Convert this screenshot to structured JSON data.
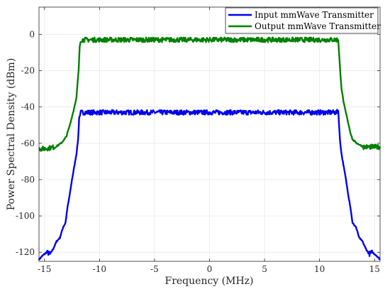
{
  "chart_data": {
    "type": "line",
    "title": "",
    "xlabel": "Frequency (MHz)",
    "ylabel": "Power Spectral Density (dBm)",
    "xlim": [
      -15.5,
      15.5
    ],
    "ylim": [
      -125,
      15
    ],
    "xticks": [
      -15,
      -10,
      -5,
      0,
      5,
      10,
      15
    ],
    "xtick_labels": [
      "-15",
      "-10",
      "-5",
      "0",
      "5",
      "10",
      "15"
    ],
    "yticks": [
      -120,
      -100,
      -80,
      -60,
      -40,
      -20,
      0
    ],
    "ytick_labels": [
      "-120",
      "-100",
      "-80",
      "-60",
      "-40",
      "-20",
      "0"
    ],
    "grid": true,
    "legend_position": "top-right",
    "series": [
      {
        "name": "Input mmWave Transmitter",
        "color": "#0000ee",
        "points": [
          [
            -15.5,
            -124
          ],
          [
            -15.2,
            -122
          ],
          [
            -14.8,
            -120
          ],
          [
            -14.5,
            -121
          ],
          [
            -14.2,
            -118
          ],
          [
            -13.9,
            -114
          ],
          [
            -13.6,
            -112
          ],
          [
            -13.3,
            -106
          ],
          [
            -13.1,
            -104
          ],
          [
            -12.9,
            -95
          ],
          [
            -12.7,
            -88
          ],
          [
            -12.5,
            -80
          ],
          [
            -12.3,
            -73
          ],
          [
            -12.1,
            -66
          ],
          [
            -11.95,
            -58
          ],
          [
            -11.85,
            -46
          ],
          [
            -11.7,
            -43
          ],
          [
            -10,
            -43
          ],
          [
            -5,
            -43
          ],
          [
            0,
            -43
          ],
          [
            5,
            -43
          ],
          [
            10,
            -43
          ],
          [
            11.55,
            -43
          ],
          [
            11.7,
            -42
          ],
          [
            11.85,
            -58
          ],
          [
            12.0,
            -66
          ],
          [
            12.2,
            -73
          ],
          [
            12.4,
            -80
          ],
          [
            12.6,
            -88
          ],
          [
            12.8,
            -95
          ],
          [
            13.0,
            -104
          ],
          [
            13.3,
            -106
          ],
          [
            13.6,
            -112
          ],
          [
            13.9,
            -114
          ],
          [
            14.2,
            -118
          ],
          [
            14.5,
            -121
          ],
          [
            14.8,
            -120
          ],
          [
            15.2,
            -122
          ],
          [
            15.5,
            -124
          ]
        ]
      },
      {
        "name": "Output mmWave Transmitter",
        "color": "#008000",
        "points": [
          [
            -15.5,
            -63
          ],
          [
            -15,
            -63
          ],
          [
            -14,
            -62
          ],
          [
            -13.5,
            -60
          ],
          [
            -13.2,
            -58
          ],
          [
            -13.0,
            -56
          ],
          [
            -12.7,
            -50
          ],
          [
            -12.4,
            -43
          ],
          [
            -12.1,
            -35
          ],
          [
            -11.9,
            -20
          ],
          [
            -11.8,
            -7
          ],
          [
            -11.7,
            -3
          ],
          [
            -10,
            -3
          ],
          [
            -5,
            -3
          ],
          [
            0,
            -3
          ],
          [
            5,
            -3
          ],
          [
            10,
            -3
          ],
          [
            11.55,
            -3
          ],
          [
            11.7,
            -3
          ],
          [
            11.85,
            -18
          ],
          [
            12.0,
            -30
          ],
          [
            12.2,
            -38
          ],
          [
            12.5,
            -46
          ],
          [
            12.8,
            -54
          ],
          [
            13.0,
            -58
          ],
          [
            13.4,
            -60
          ],
          [
            14,
            -62
          ],
          [
            15,
            -62
          ],
          [
            15.5,
            -62
          ]
        ]
      }
    ]
  }
}
